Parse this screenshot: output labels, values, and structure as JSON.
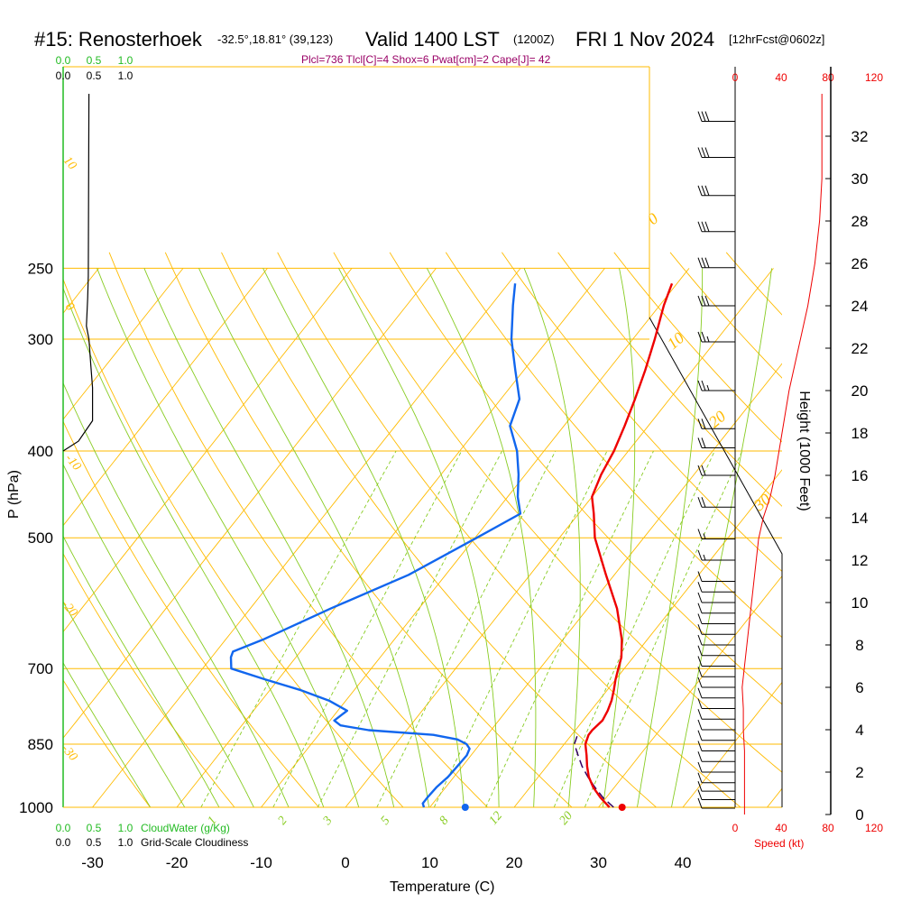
{
  "header": {
    "station": "#15: Renosterhoek",
    "coords": "-32.5°,18.81° (39,123)",
    "valid": "Valid 1400 LST",
    "zulu": "(1200Z)",
    "date": "FRI 1 Nov 2024",
    "forecast": "[12hrFcst@0602z]",
    "indices": "Plcl=736 Tlcl[C]=4 Shox=6 Pwat[cm]=2 Cape[J]= 42"
  },
  "legend": {
    "cloudwater_ticks": [
      "0.0",
      "0.5",
      "1.0"
    ],
    "cloudiness_ticks": [
      "0.0",
      "0.5",
      "1.0"
    ],
    "cloudwater_label": "CloudWater (g/Kg)",
    "cloudiness_label": "Grid-Scale Cloudiness",
    "speed_ticks": [
      "0",
      "40",
      "80",
      "120"
    ],
    "speed_label": "Speed (kt)"
  },
  "colors": {
    "isobar": "#ffbb00",
    "dry_adiabat": "#ffbb00",
    "moist_adiabat": "#88cc22",
    "mixing_ratio": "#88cc22",
    "temperature": "#ee0000",
    "dewpoint": "#1166ee",
    "parcel": "#330066",
    "cloudwater": "#22bb22",
    "speed": "#ee0000"
  },
  "chart_data": {
    "type": "line",
    "xlabel": "Temperature (C)",
    "ylabel": "P (hPa)",
    "y2label": "Height (1000 Feet)",
    "x_ticks": [
      -30,
      -20,
      -10,
      0,
      10,
      20,
      30,
      40
    ],
    "p_ticks": [
      250,
      300,
      400,
      500,
      700,
      850,
      1000
    ],
    "height_ticks": [
      0,
      2,
      4,
      6,
      8,
      10,
      12,
      14,
      16,
      18,
      20,
      22,
      24,
      26,
      28,
      30,
      32
    ],
    "isotherm_labels": [
      "0",
      "10",
      "20",
      "30"
    ],
    "dry_adiabat_labels": [
      "10",
      "0",
      "-10",
      "-20",
      "-30"
    ],
    "mixing_ratio_labels": [
      "1",
      "2",
      "3",
      "5",
      "8",
      "12",
      "20"
    ],
    "series": [
      {
        "name": "Temperature",
        "p": [
          1000,
          975,
          950,
          925,
          900,
          875,
          850,
          830,
          820,
          800,
          780,
          760,
          740,
          720,
          700,
          680,
          650,
          600,
          550,
          500,
          470,
          450,
          425,
          400,
          375,
          350,
          325,
          300,
          275,
          260
        ],
        "t": [
          31.3,
          29.3,
          27.5,
          26.0,
          24.8,
          23.7,
          22.5,
          22.0,
          22.0,
          22.3,
          22.0,
          21.5,
          20.8,
          20.0,
          19.3,
          18.6,
          17.0,
          13.5,
          9.0,
          4.2,
          1.8,
          0.0,
          -1.0,
          -1.7,
          -2.8,
          -4.1,
          -5.6,
          -7.4,
          -9.5,
          -10.6
        ]
      },
      {
        "name": "Dewpoint",
        "p": [
          1000,
          990,
          975,
          950,
          925,
          900,
          875,
          860,
          850,
          840,
          830,
          820,
          810,
          800,
          780,
          760,
          740,
          720,
          700,
          680,
          670,
          650,
          600,
          550,
          500,
          470,
          450,
          425,
          400,
          375,
          350,
          325,
          300,
          275,
          260
        ],
        "t": [
          9.3,
          8.8,
          8.8,
          8.9,
          9.3,
          9.4,
          9.5,
          9.2,
          8.4,
          6.9,
          3.6,
          -4.5,
          -8.3,
          -9.5,
          -8.9,
          -12.0,
          -16.3,
          -21.5,
          -26.6,
          -27.7,
          -28.0,
          -25.6,
          -20.5,
          -14.4,
          -9.8,
          -6.9,
          -8.8,
          -10.8,
          -13.2,
          -16.4,
          -17.8,
          -21.0,
          -24.4,
          -27.4,
          -29.2
        ]
      },
      {
        "name": "Parcel",
        "p": [
          1000,
          975,
          950,
          925,
          900,
          875,
          850,
          830
        ],
        "t": [
          31.8,
          29.6,
          27.7,
          25.9,
          24.2,
          22.7,
          21.2,
          20.7
        ]
      },
      {
        "name": "CloudWater",
        "p": [
          250,
          255,
          270,
          290,
          300,
          320,
          340,
          360,
          370,
          390,
          400
        ],
        "v": [
          0.42,
          0.41,
          0.4,
          0.38,
          0.42,
          0.45,
          0.48,
          0.48,
          0.48,
          0.25,
          0.0
        ]
      },
      {
        "name": "Speed (kt)",
        "h_kft": [
          0,
          1,
          2,
          3,
          4,
          5,
          6,
          7,
          8,
          9,
          10,
          11,
          12,
          13,
          14,
          15,
          16,
          18,
          20,
          22,
          24,
          26,
          28,
          30,
          32
        ],
        "kt": [
          8,
          8,
          8,
          8,
          7,
          7,
          6,
          8,
          10,
          12,
          14,
          16,
          18,
          20,
          24,
          30,
          34,
          40,
          46,
          54,
          62,
          68,
          72,
          74,
          74
        ]
      }
    ],
    "surface_markers": {
      "temperature": 32.8,
      "dewpoint": 14.2
    },
    "wind_barbs": [
      {
        "h_kft": 0.3,
        "kt": 10
      },
      {
        "h_kft": 0.7,
        "kt": 10
      },
      {
        "h_kft": 1.1,
        "kt": 10
      },
      {
        "h_kft": 1.5,
        "kt": 10
      },
      {
        "h_kft": 2.0,
        "kt": 10
      },
      {
        "h_kft": 2.5,
        "kt": 10
      },
      {
        "h_kft": 3.0,
        "kt": 10
      },
      {
        "h_kft": 3.5,
        "kt": 10
      },
      {
        "h_kft": 4.0,
        "kt": 10
      },
      {
        "h_kft": 4.5,
        "kt": 10
      },
      {
        "h_kft": 5.0,
        "kt": 10
      },
      {
        "h_kft": 5.5,
        "kt": 10
      },
      {
        "h_kft": 6.0,
        "kt": 10
      },
      {
        "h_kft": 6.5,
        "kt": 10
      },
      {
        "h_kft": 7.0,
        "kt": 10
      },
      {
        "h_kft": 7.5,
        "kt": 10
      },
      {
        "h_kft": 8.0,
        "kt": 10
      },
      {
        "h_kft": 8.5,
        "kt": 10
      },
      {
        "h_kft": 9.0,
        "kt": 10
      },
      {
        "h_kft": 9.5,
        "kt": 10
      },
      {
        "h_kft": 10.0,
        "kt": 10
      },
      {
        "h_kft": 10.5,
        "kt": 10
      },
      {
        "h_kft": 11.0,
        "kt": 10
      },
      {
        "h_kft": 12.0,
        "kt": 15
      },
      {
        "h_kft": 13.0,
        "kt": 15
      },
      {
        "h_kft": 14.5,
        "kt": 20
      },
      {
        "h_kft": 16.0,
        "kt": 20
      },
      {
        "h_kft": 17.3,
        "kt": 20
      },
      {
        "h_kft": 18.2,
        "kt": 20
      },
      {
        "h_kft": 20.0,
        "kt": 25
      },
      {
        "h_kft": 22.3,
        "kt": 25
      },
      {
        "h_kft": 24.0,
        "kt": 30
      },
      {
        "h_kft": 25.8,
        "kt": 30
      },
      {
        "h_kft": 27.5,
        "kt": 30
      },
      {
        "h_kft": 29.2,
        "kt": 30
      },
      {
        "h_kft": 31.0,
        "kt": 30
      },
      {
        "h_kft": 32.7,
        "kt": 30
      }
    ]
  }
}
